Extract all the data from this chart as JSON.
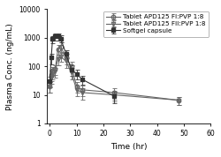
{
  "title": "",
  "xlabel": "Time (hr)",
  "ylabel": "Plasma Conc. (ng/mL)",
  "xlim": [
    -1,
    60
  ],
  "ylim": [
    1,
    10000
  ],
  "xticks": [
    0,
    10,
    20,
    30,
    40,
    50,
    60
  ],
  "series": [
    {
      "label": "Tablet APD125 FI:PVP 1:8",
      "marker": "o",
      "fillstyle": "none",
      "color": "#666666",
      "linewidth": 0.8,
      "x": [
        0,
        0.5,
        1,
        2,
        3,
        4,
        6,
        8,
        10,
        12,
        24,
        48
      ],
      "y": [
        20,
        50,
        70,
        80,
        400,
        500,
        200,
        100,
        20,
        15,
        12,
        6.5
      ],
      "yerr": [
        8,
        20,
        25,
        30,
        150,
        180,
        80,
        40,
        8,
        6,
        5,
        2
      ]
    },
    {
      "label": "Tablet APD125 FII:PVP 1:8",
      "marker": "v",
      "fillstyle": "none",
      "color": "#666666",
      "linewidth": 0.8,
      "x": [
        0,
        0.5,
        1,
        2,
        3,
        4,
        6,
        8,
        10,
        12,
        24,
        48
      ],
      "y": [
        20,
        40,
        55,
        65,
        180,
        220,
        150,
        60,
        15,
        12,
        10,
        6.5
      ],
      "yerr": [
        8,
        15,
        20,
        25,
        70,
        80,
        60,
        25,
        6,
        5,
        4,
        2
      ]
    },
    {
      "label": "Softgel capsule",
      "marker": "s",
      "fillstyle": "full",
      "color": "#333333",
      "linewidth": 0.8,
      "x": [
        0,
        0.5,
        1,
        2,
        3,
        4,
        6,
        8,
        10,
        12,
        24
      ],
      "y": [
        30,
        200,
        900,
        1100,
        1100,
        950,
        280,
        75,
        55,
        35,
        9
      ],
      "yerr": [
        12,
        80,
        250,
        280,
        280,
        250,
        90,
        30,
        20,
        12,
        4
      ]
    }
  ],
  "legend_fontsize": 5.2,
  "axis_fontsize": 6.5,
  "tick_fontsize": 5.5,
  "background_color": "#ffffff"
}
